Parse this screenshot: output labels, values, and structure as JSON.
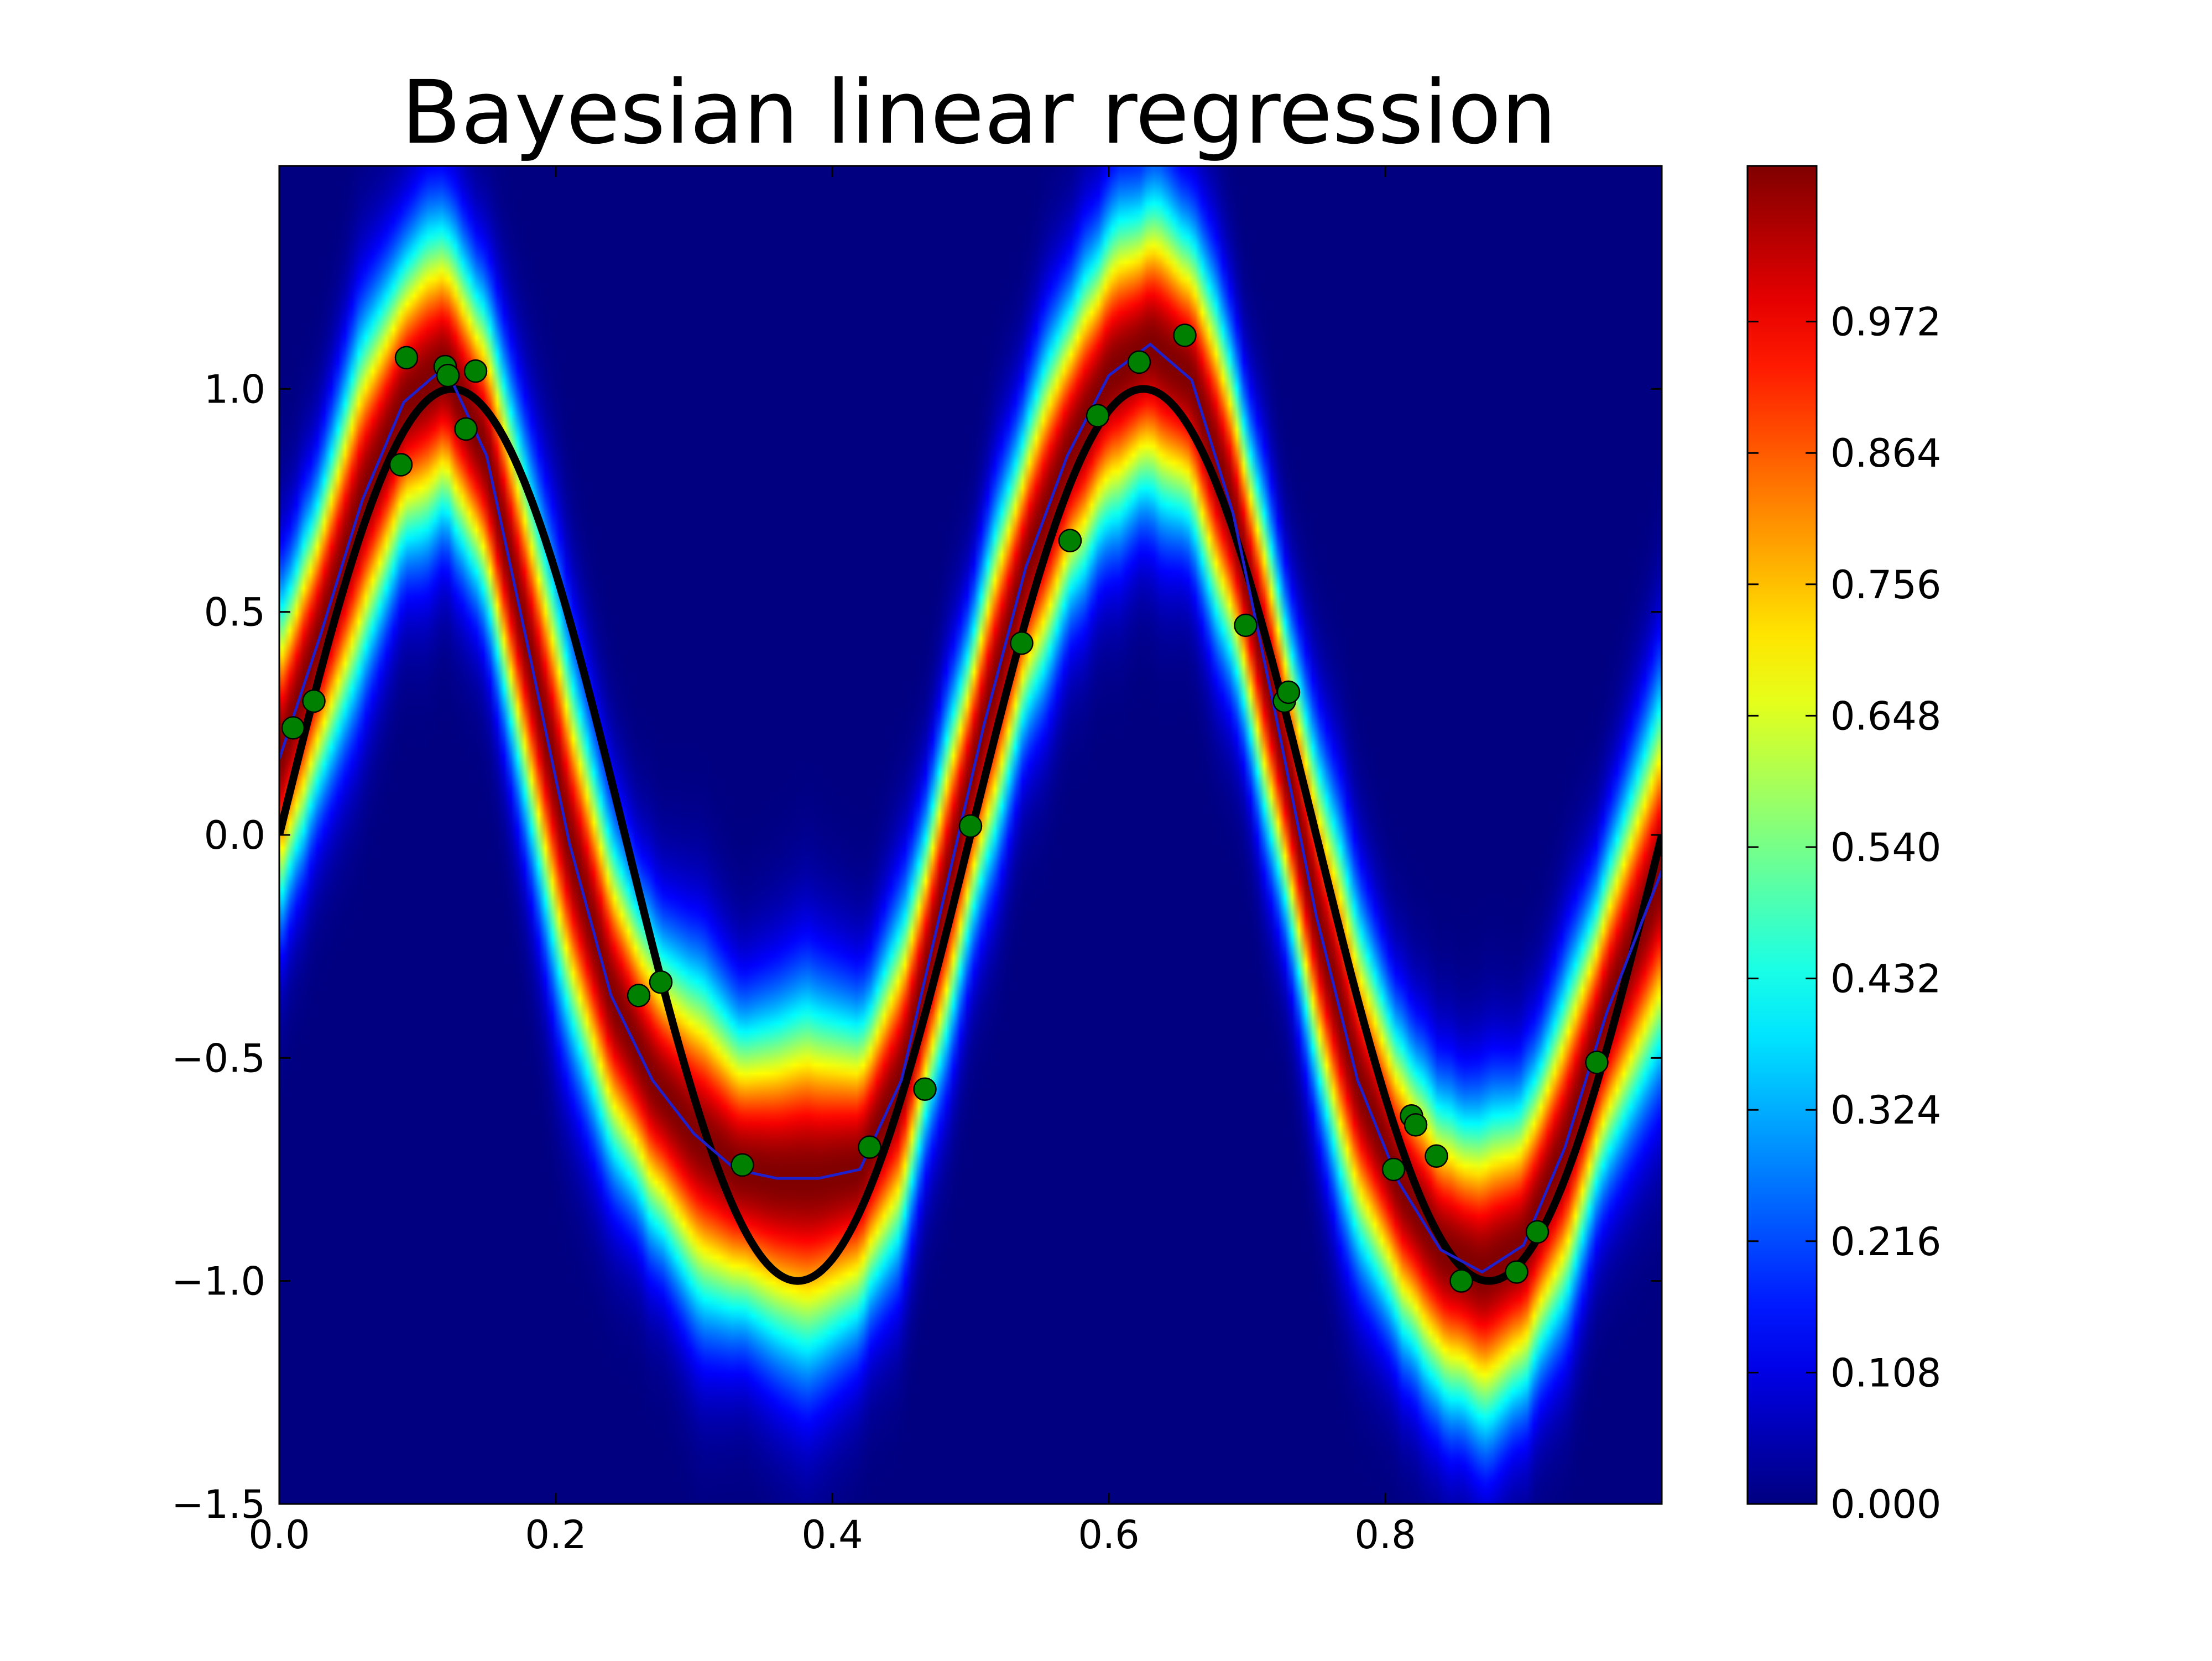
{
  "chart_data": {
    "type": "heatmap",
    "title": "Bayesian linear regression",
    "xlim": [
      0.0,
      1.0
    ],
    "ylim": [
      -1.5,
      1.5
    ],
    "xticks": [
      0.0,
      0.2,
      0.4,
      0.6,
      0.8
    ],
    "yticks": [
      -1.5,
      -1.0,
      -0.5,
      0.0,
      0.5,
      1.0
    ],
    "xtick_labels": [
      "0.0",
      "0.2",
      "0.4",
      "0.6",
      "0.8"
    ],
    "ytick_labels": [
      "−1.5",
      "−1.0",
      "−0.5",
      "0.0",
      "0.5",
      "1.0"
    ],
    "grid": false,
    "colormap": "jet",
    "colorbar": {
      "range": [
        0.0,
        1.1
      ],
      "ticks": [
        0.0,
        0.108,
        0.216,
        0.324,
        0.432,
        0.54,
        0.648,
        0.756,
        0.864,
        0.972
      ],
      "tick_labels": [
        "0.000",
        "0.108",
        "0.216",
        "0.324",
        "0.432",
        "0.540",
        "0.648",
        "0.756",
        "0.864",
        "0.972"
      ]
    },
    "true_function": {
      "type": "line",
      "formula": "sin(4*pi*x)",
      "color": "#000000"
    },
    "predictive_mean": {
      "type": "line",
      "color": "#1f1fcc",
      "x": [
        0.0,
        0.03,
        0.06,
        0.09,
        0.12,
        0.15,
        0.18,
        0.21,
        0.24,
        0.27,
        0.3,
        0.33,
        0.36,
        0.39,
        0.42,
        0.45,
        0.48,
        0.51,
        0.54,
        0.57,
        0.6,
        0.63,
        0.66,
        0.69,
        0.72,
        0.75,
        0.78,
        0.81,
        0.84,
        0.87,
        0.9,
        0.93,
        0.96,
        1.0
      ],
      "y": [
        0.17,
        0.45,
        0.75,
        0.97,
        1.05,
        0.85,
        0.42,
        -0.02,
        -0.36,
        -0.55,
        -0.67,
        -0.75,
        -0.77,
        -0.77,
        -0.75,
        -0.55,
        -0.15,
        0.25,
        0.6,
        0.85,
        1.03,
        1.1,
        1.02,
        0.72,
        0.28,
        -0.18,
        -0.55,
        -0.78,
        -0.93,
        -0.98,
        -0.92,
        -0.7,
        -0.4,
        -0.08
      ]
    },
    "points": {
      "type": "scatter",
      "color": "#008000",
      "x": [
        0.01,
        0.025,
        0.088,
        0.092,
        0.12,
        0.122,
        0.135,
        0.142,
        0.26,
        0.276,
        0.335,
        0.427,
        0.467,
        0.5,
        0.537,
        0.572,
        0.592,
        0.622,
        0.655,
        0.699,
        0.727,
        0.73,
        0.806,
        0.819,
        0.822,
        0.837,
        0.855,
        0.895,
        0.91,
        0.953
      ],
      "y": [
        0.24,
        0.3,
        0.83,
        1.07,
        1.05,
        1.03,
        0.91,
        1.04,
        -0.36,
        -0.33,
        -0.74,
        -0.7,
        -0.57,
        0.02,
        0.43,
        0.66,
        0.94,
        1.06,
        1.12,
        0.47,
        0.3,
        0.32,
        -0.75,
        -0.63,
        -0.65,
        -0.72,
        -1.0,
        -0.98,
        -0.89,
        -0.51
      ]
    }
  }
}
